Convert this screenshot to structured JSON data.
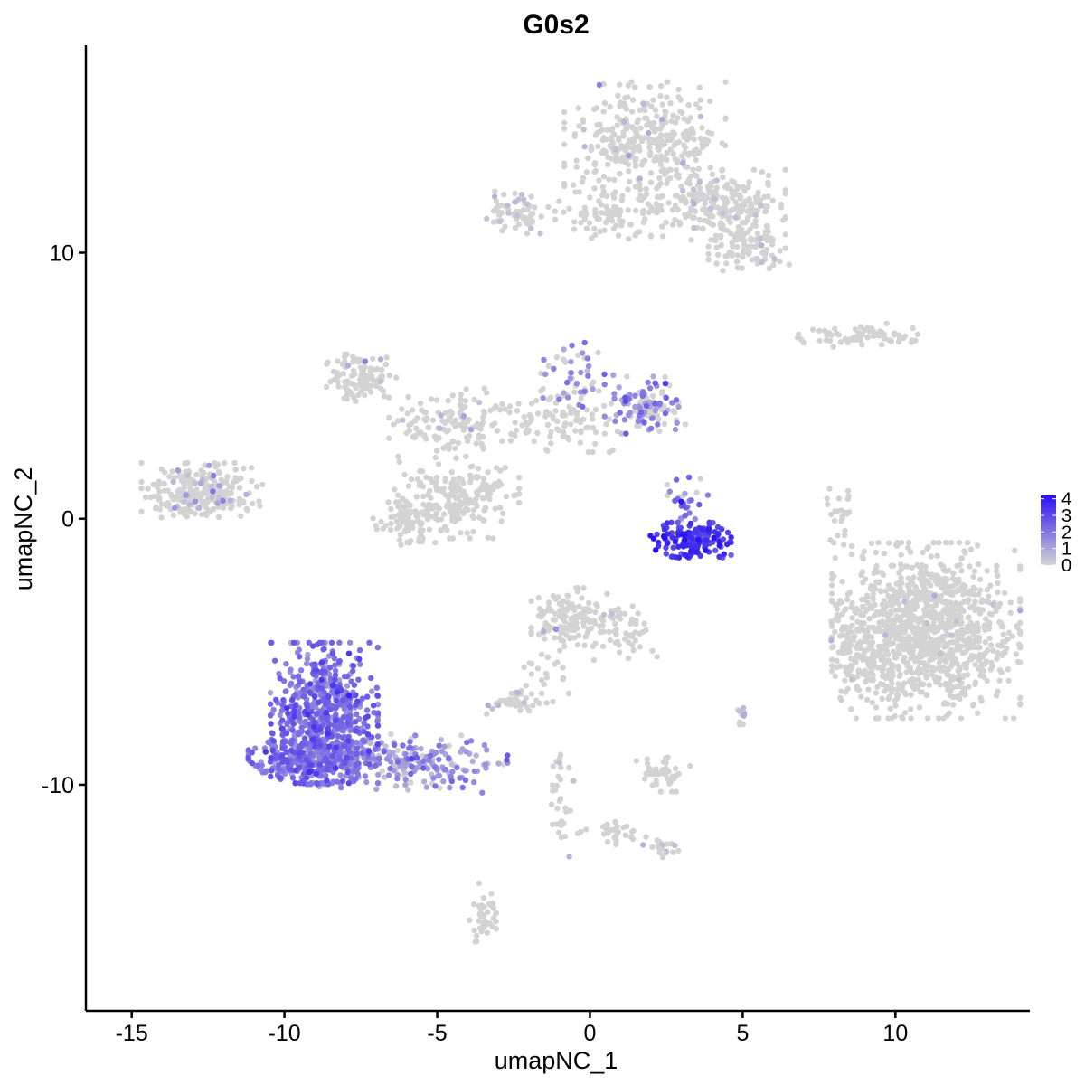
{
  "chart_data": {
    "type": "scatter",
    "title": "G0s2",
    "xlabel": "umapNC_1",
    "ylabel": "umapNC_2",
    "xlim": [
      -16.5,
      14.4
    ],
    "ylim": [
      -18.5,
      17.8
    ],
    "x_ticks": [
      {
        "value": -15,
        "label": "-15"
      },
      {
        "value": -10,
        "label": "-10"
      },
      {
        "value": -5,
        "label": "-5"
      },
      {
        "value": 0,
        "label": "0"
      },
      {
        "value": 5,
        "label": "5"
      },
      {
        "value": 10,
        "label": "10"
      }
    ],
    "y_ticks": [
      {
        "value": 10,
        "label": "10"
      },
      {
        "value": 0,
        "label": "0"
      },
      {
        "value": -10,
        "label": "-10"
      }
    ],
    "grid": false,
    "legend_position": "right",
    "color_scale": {
      "low_color": "#d3d3d3",
      "high_color": "#2a12f2",
      "min": 0,
      "max": 4.2,
      "ticks": [
        {
          "value": 4,
          "label": "4"
        },
        {
          "value": 3,
          "label": "3"
        },
        {
          "value": 2,
          "label": "2"
        },
        {
          "value": 1,
          "label": "1"
        },
        {
          "value": 0,
          "label": "0"
        }
      ]
    },
    "clusters": [
      {
        "cx": 1.8,
        "cy": 14.0,
        "sx": 1.2,
        "sy": 1.1,
        "n": 380,
        "expr_mean": 0.05,
        "expr_frac": 0.05
      },
      {
        "cx": 4.2,
        "cy": 11.8,
        "sx": 1.0,
        "sy": 0.6,
        "n": 220,
        "expr_mean": 0.1,
        "expr_frac": 0.04
      },
      {
        "cx": 5.2,
        "cy": 10.2,
        "sx": 0.6,
        "sy": 0.4,
        "n": 90,
        "expr_mean": 0.05,
        "expr_frac": 0.03
      },
      {
        "cx": -2.4,
        "cy": 11.6,
        "sx": 0.5,
        "sy": 0.4,
        "n": 70,
        "expr_mean": 0.2,
        "expr_frac": 0.1
      },
      {
        "cx": 0.8,
        "cy": 11.4,
        "sx": 0.9,
        "sy": 0.4,
        "n": 80,
        "expr_mean": 0.0,
        "expr_frac": 0.0
      },
      {
        "cx": -7.5,
        "cy": 5.3,
        "sx": 0.6,
        "sy": 0.4,
        "n": 100,
        "expr_mean": 0.1,
        "expr_frac": 0.03
      },
      {
        "cx": -4.6,
        "cy": 3.6,
        "sx": 0.9,
        "sy": 0.6,
        "n": 130,
        "expr_mean": 0.05,
        "expr_frac": 0.03
      },
      {
        "cx": -4.3,
        "cy": 0.8,
        "sx": 0.9,
        "sy": 0.7,
        "n": 200,
        "expr_mean": 0.0,
        "expr_frac": 0.0
      },
      {
        "cx": -6.0,
        "cy": 0.0,
        "sx": 0.5,
        "sy": 0.5,
        "n": 80,
        "expr_mean": 0.0,
        "expr_frac": 0.0
      },
      {
        "cx": -1.3,
        "cy": 3.6,
        "sx": 1.0,
        "sy": 0.5,
        "n": 100,
        "expr_mean": 0.05,
        "expr_frac": 0.03
      },
      {
        "cx": -0.5,
        "cy": 5.3,
        "sx": 0.5,
        "sy": 0.6,
        "n": 50,
        "expr_mean": 1.5,
        "expr_frac": 0.5
      },
      {
        "cx": 1.8,
        "cy": 4.3,
        "sx": 0.6,
        "sy": 0.5,
        "n": 120,
        "expr_mean": 1.6,
        "expr_frac": 0.55
      },
      {
        "cx": -12.7,
        "cy": 1.0,
        "sx": 0.9,
        "sy": 0.5,
        "n": 260,
        "expr_mean": 0.8,
        "expr_frac": 0.12
      },
      {
        "cx": 9.0,
        "cy": 6.9,
        "sx": 1.0,
        "sy": 0.2,
        "n": 70,
        "expr_mean": 0.1,
        "expr_frac": 0.04
      },
      {
        "cx": 3.3,
        "cy": -0.8,
        "sx": 0.6,
        "sy": 0.3,
        "n": 160,
        "expr_mean": 3.3,
        "expr_frac": 1.0
      },
      {
        "cx": 3.2,
        "cy": 0.7,
        "sx": 0.3,
        "sy": 0.4,
        "n": 30,
        "expr_mean": 2.2,
        "expr_frac": 0.8
      },
      {
        "cx": 11.0,
        "cy": -4.2,
        "sx": 1.4,
        "sy": 1.5,
        "n": 1100,
        "expr_mean": 0.05,
        "expr_frac": 0.01
      },
      {
        "cx": 9.0,
        "cy": -5.2,
        "sx": 0.5,
        "sy": 0.8,
        "n": 130,
        "expr_mean": 0.05,
        "expr_frac": 0.02
      },
      {
        "cx": -0.6,
        "cy": -3.7,
        "sx": 0.6,
        "sy": 0.5,
        "n": 140,
        "expr_mean": 0.1,
        "expr_frac": 0.05
      },
      {
        "cx": 1.1,
        "cy": -4.3,
        "sx": 0.5,
        "sy": 0.5,
        "n": 50,
        "expr_mean": 0.0,
        "expr_frac": 0.0
      },
      {
        "cx": -8.7,
        "cy": -7.3,
        "sx": 0.8,
        "sy": 1.2,
        "n": 600,
        "expr_mean": 2.1,
        "expr_frac": 1.0
      },
      {
        "cx": -9.2,
        "cy": -9.1,
        "sx": 0.9,
        "sy": 0.4,
        "n": 250,
        "expr_mean": 1.9,
        "expr_frac": 1.0
      },
      {
        "cx": -6.0,
        "cy": -9.2,
        "sx": 1.5,
        "sy": 0.5,
        "n": 220,
        "expr_mean": 1.3,
        "expr_frac": 0.85
      },
      {
        "cx": -2.5,
        "cy": -6.9,
        "sx": 0.4,
        "sy": 0.2,
        "n": 40,
        "expr_mean": 0.2,
        "expr_frac": 0.1
      },
      {
        "cx": 2.4,
        "cy": -9.6,
        "sx": 0.4,
        "sy": 0.3,
        "n": 50,
        "expr_mean": 0.0,
        "expr_frac": 0.0
      },
      {
        "cx": 2.4,
        "cy": -12.4,
        "sx": 0.3,
        "sy": 0.2,
        "n": 20,
        "expr_mean": 0.5,
        "expr_frac": 0.3
      },
      {
        "cx": -3.5,
        "cy": -14.8,
        "sx": 0.2,
        "sy": 0.5,
        "n": 40,
        "expr_mean": 0.0,
        "expr_frac": 0.0
      },
      {
        "cx": -0.9,
        "cy": -10.5,
        "sx": 0.2,
        "sy": 1.0,
        "n": 30,
        "expr_mean": 0.3,
        "expr_frac": 0.1
      },
      {
        "cx": 0.7,
        "cy": -11.8,
        "sx": 0.5,
        "sy": 0.2,
        "n": 25,
        "expr_mean": 0.0,
        "expr_frac": 0.0
      },
      {
        "cx": 8.2,
        "cy": 0.2,
        "sx": 0.2,
        "sy": 0.7,
        "n": 25,
        "expr_mean": 0.0,
        "expr_frac": 0.0
      },
      {
        "cx": -1.5,
        "cy": -5.6,
        "sx": 0.5,
        "sy": 0.6,
        "n": 25,
        "expr_mean": 0.1,
        "expr_frac": 0.05
      },
      {
        "cx": 5.0,
        "cy": -7.3,
        "sx": 0.1,
        "sy": 0.2,
        "n": 12,
        "expr_mean": 0.2,
        "expr_frac": 0.2
      }
    ]
  }
}
